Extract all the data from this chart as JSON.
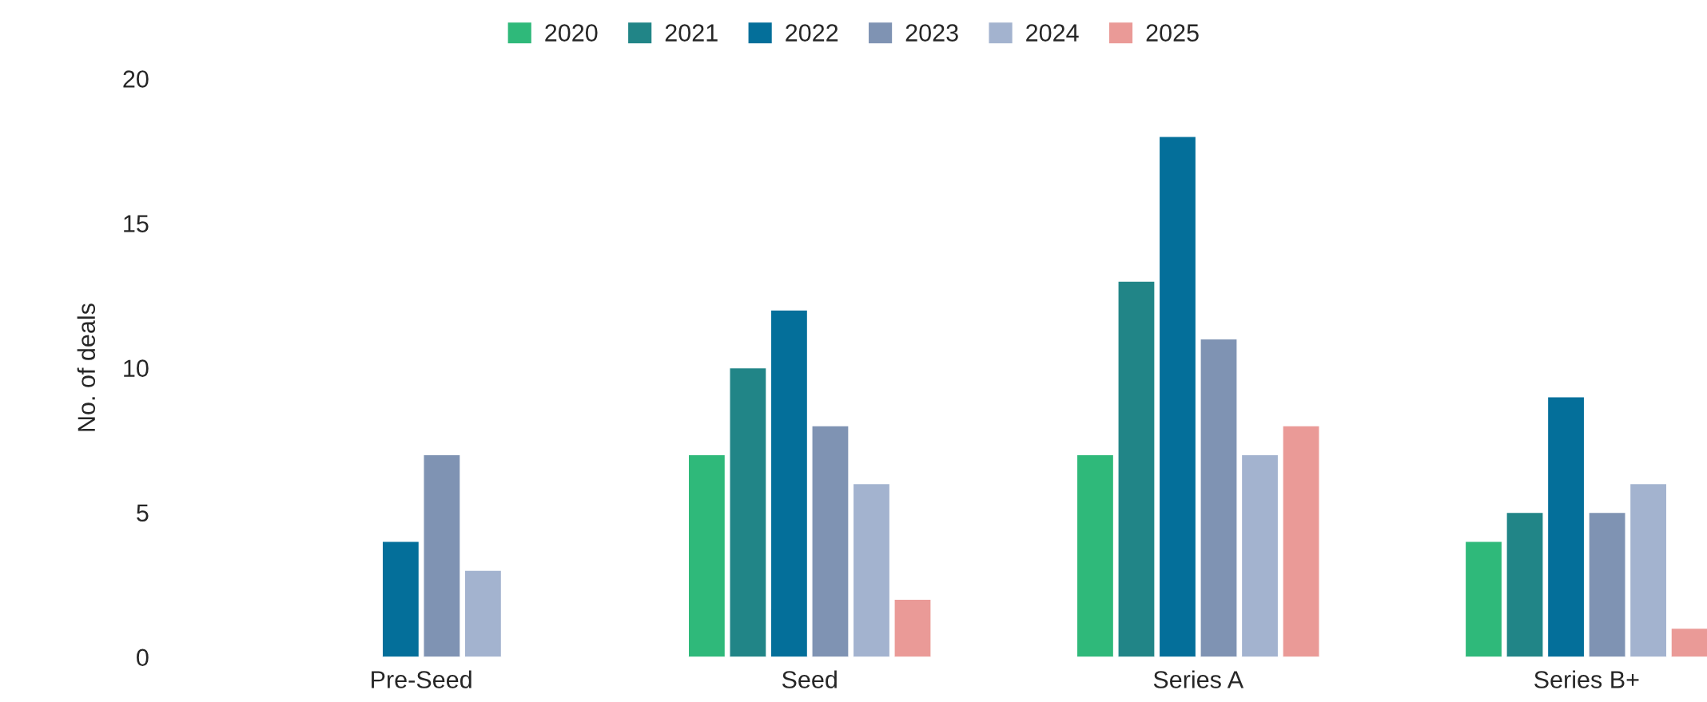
{
  "chart_data": {
    "type": "bar",
    "ylabel": "No. of deals",
    "categories": [
      "Pre-Seed",
      "Seed",
      "Series A",
      "Series B+"
    ],
    "series": [
      {
        "name": "2020",
        "color": "#2fb97a",
        "values": [
          null,
          7,
          7,
          4
        ]
      },
      {
        "name": "2021",
        "color": "#218587",
        "values": [
          null,
          10,
          13,
          5
        ]
      },
      {
        "name": "2022",
        "color": "#046f9a",
        "values": [
          4,
          12,
          18,
          9
        ]
      },
      {
        "name": "2023",
        "color": "#7f93b3",
        "values": [
          7,
          8,
          11,
          5
        ]
      },
      {
        "name": "2024",
        "color": "#a3b3cf",
        "values": [
          3,
          6,
          7,
          6
        ]
      },
      {
        "name": "2025",
        "color": "#ea9a97",
        "values": [
          null,
          2,
          8,
          1
        ]
      }
    ],
    "ylim": [
      0,
      20
    ],
    "yticks": [
      0,
      5,
      10,
      15,
      20
    ],
    "grid": false,
    "legend": "top"
  }
}
